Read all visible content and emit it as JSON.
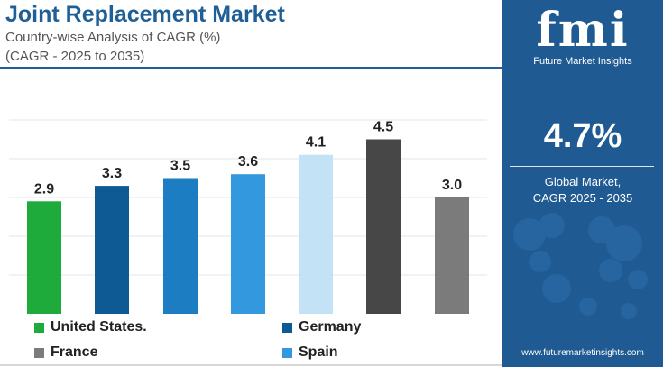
{
  "header": {
    "title": "Joint Replacement Market",
    "subtitle": "Country-wise Analysis of CAGR (%)",
    "subtitle2": "(CAGR - 2025 to 2035)"
  },
  "chart_data": {
    "type": "bar",
    "categories": [
      "United States.",
      "Germany",
      "",
      "Spain",
      "",
      "",
      "France"
    ],
    "values": [
      2.9,
      3.3,
      3.5,
      3.6,
      4.1,
      4.5,
      3.0
    ],
    "value_labels": [
      "2.9",
      "3.3",
      "3.5",
      "3.6",
      "4.1",
      "4.5",
      "3.0"
    ],
    "colors": [
      "#1faa3c",
      "#0d5a94",
      "#1c7dc2",
      "#3398dd",
      "#c3e2f5",
      "#474747",
      "#7b7b7b"
    ],
    "ylim": [
      0,
      6
    ],
    "grid": true,
    "legend_position": "bottom"
  },
  "legend": [
    {
      "label": "United States.",
      "color": "#1faa3c"
    },
    {
      "label": "Germany",
      "color": "#0d5a94"
    },
    {
      "label": "France",
      "color": "#7b7b7b"
    },
    {
      "label": "Spain",
      "color": "#3398dd"
    }
  ],
  "panel": {
    "logo_text": "fmi",
    "logo_subtitle": "Future Market Insights",
    "big_value": "4.7%",
    "label_line1": "Global Market,",
    "label_line2": "CAGR 2025 - 2035",
    "website": "www.futuremarketinsights.com",
    "background_color": "#1f5a92"
  }
}
